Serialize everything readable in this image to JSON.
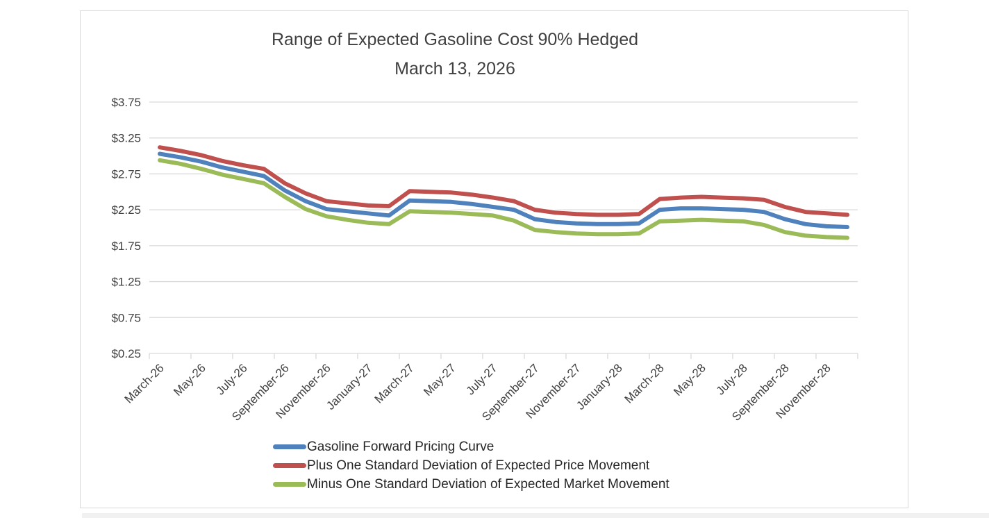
{
  "chart_data": {
    "type": "line",
    "title": "Range of Expected Gasoline Cost 90% Hedged",
    "subtitle": "March 13, 2026",
    "x": [
      "March-26",
      "April-26",
      "May-26",
      "June-26",
      "July-26",
      "August-26",
      "September-26",
      "October-26",
      "November-26",
      "December-26",
      "January-27",
      "February-27",
      "March-27",
      "April-27",
      "May-27",
      "June-27",
      "July-27",
      "August-27",
      "September-27",
      "October-27",
      "November-27",
      "December-27",
      "January-28",
      "February-28",
      "March-28",
      "April-28",
      "May-28",
      "June-28",
      "July-28",
      "August-28",
      "September-28",
      "October-28",
      "November-28",
      "December-28"
    ],
    "x_tick_labels": [
      "March-26",
      "May-26",
      "July-26",
      "September-26",
      "November-26",
      "January-27",
      "March-27",
      "May-27",
      "July-27",
      "September-27",
      "November-27",
      "January-28",
      "March-28",
      "May-28",
      "July-28",
      "September-28",
      "November-28"
    ],
    "series": [
      {
        "name": "Gasoline Forward Pricing Curve",
        "color": "#4F81BD",
        "values": [
          3.03,
          2.98,
          2.92,
          2.84,
          2.78,
          2.72,
          2.52,
          2.37,
          2.26,
          2.23,
          2.2,
          2.17,
          2.38,
          2.37,
          2.36,
          2.33,
          2.29,
          2.25,
          2.12,
          2.08,
          2.06,
          2.05,
          2.05,
          2.06,
          2.25,
          2.27,
          2.27,
          2.26,
          2.25,
          2.22,
          2.12,
          2.05,
          2.02,
          2.01
        ]
      },
      {
        "name": "Plus One Standard Deviation of Expected Price Movement",
        "color": "#C0504D",
        "values": [
          3.12,
          3.07,
          3.01,
          2.93,
          2.87,
          2.82,
          2.62,
          2.48,
          2.37,
          2.34,
          2.31,
          2.3,
          2.51,
          2.5,
          2.49,
          2.46,
          2.42,
          2.37,
          2.25,
          2.21,
          2.19,
          2.18,
          2.18,
          2.19,
          2.4,
          2.42,
          2.43,
          2.42,
          2.41,
          2.39,
          2.29,
          2.22,
          2.2,
          2.18
        ]
      },
      {
        "name": "Minus One Standard Deviation of Expected Market Movement",
        "color": "#9BBB59",
        "values": [
          2.94,
          2.89,
          2.82,
          2.74,
          2.68,
          2.62,
          2.43,
          2.26,
          2.16,
          2.11,
          2.07,
          2.05,
          2.23,
          2.22,
          2.21,
          2.19,
          2.17,
          2.1,
          1.97,
          1.94,
          1.92,
          1.91,
          1.91,
          1.92,
          2.09,
          2.1,
          2.11,
          2.1,
          2.09,
          2.04,
          1.94,
          1.89,
          1.87,
          1.86
        ]
      }
    ],
    "y_ticks": [
      {
        "label": "$0.25",
        "value": 0.25
      },
      {
        "label": "$0.75",
        "value": 0.75
      },
      {
        "label": "$1.25",
        "value": 1.25
      },
      {
        "label": "$1.75",
        "value": 1.75
      },
      {
        "label": "$2.25",
        "value": 2.25
      },
      {
        "label": "$2.75",
        "value": 2.75
      },
      {
        "label": "$3.25",
        "value": 3.25
      },
      {
        "label": "$3.75",
        "value": 3.75
      }
    ],
    "ylim": [
      0.25,
      3.75
    ],
    "grid": true,
    "legend_position": "bottom-left"
  },
  "style": {
    "grid_color": "#d9d9d9",
    "axis_color": "#d9d9d9",
    "tick_label_color": "#404040",
    "title_color": "#404040",
    "legend_text_color": "#262626",
    "background": "#ffffff"
  }
}
